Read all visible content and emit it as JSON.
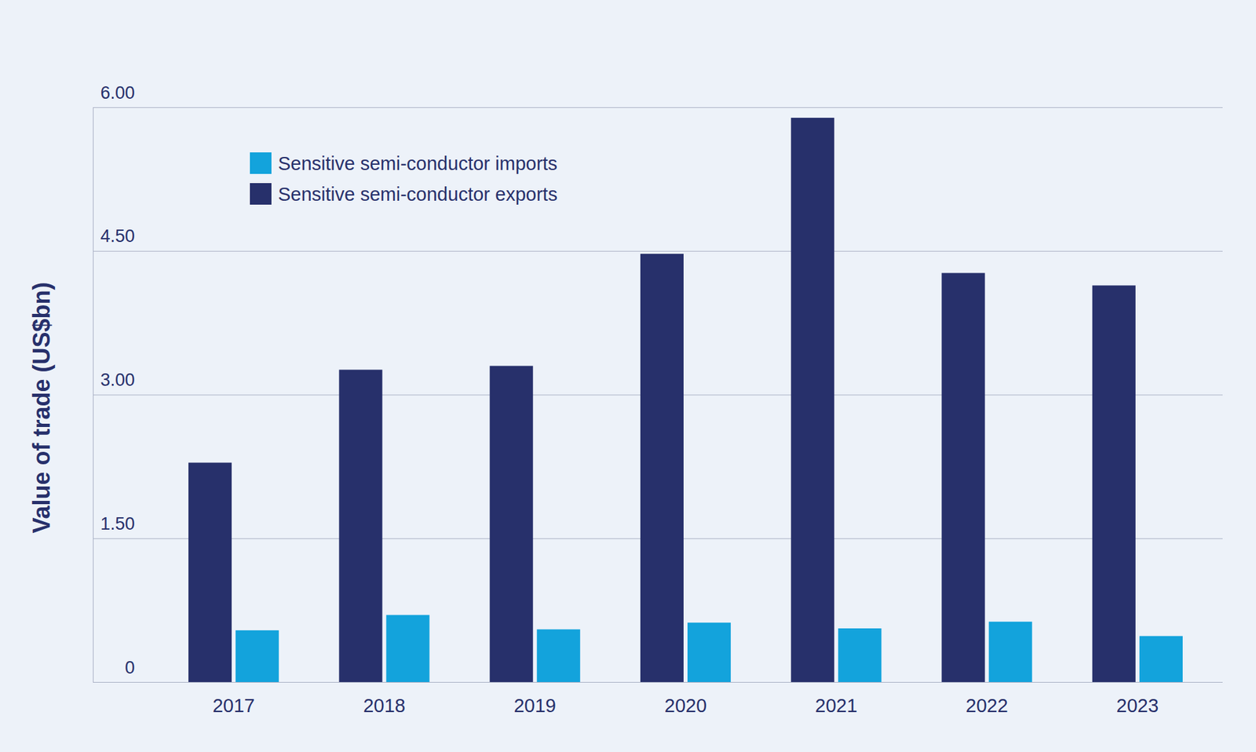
{
  "chart_data": {
    "type": "bar",
    "y_label": "Value of trade (US$bn)",
    "categories": [
      "2017",
      "2018",
      "2019",
      "2020",
      "2021",
      "2022",
      "2023"
    ],
    "series": [
      {
        "name": "Sensitive semi-conductor imports",
        "color": "#13a3dc",
        "values": [
          0.54,
          0.7,
          0.55,
          0.62,
          0.56,
          0.63,
          0.48
        ]
      },
      {
        "name": "Sensitive semi-conductor exports",
        "color": "#27306b",
        "values": [
          2.29,
          3.26,
          3.3,
          4.47,
          5.89,
          4.27,
          4.14
        ]
      }
    ],
    "ylim": [
      0,
      6
    ],
    "yticks": [
      0,
      {
        "value": 1.5,
        "label": "1.50"
      },
      {
        "value": 3,
        "label": "3.00"
      },
      {
        "value": 4.5,
        "label": "4.50"
      },
      {
        "value": 6,
        "label": "6.00"
      }
    ],
    "grid": true,
    "legend": "upper left"
  }
}
